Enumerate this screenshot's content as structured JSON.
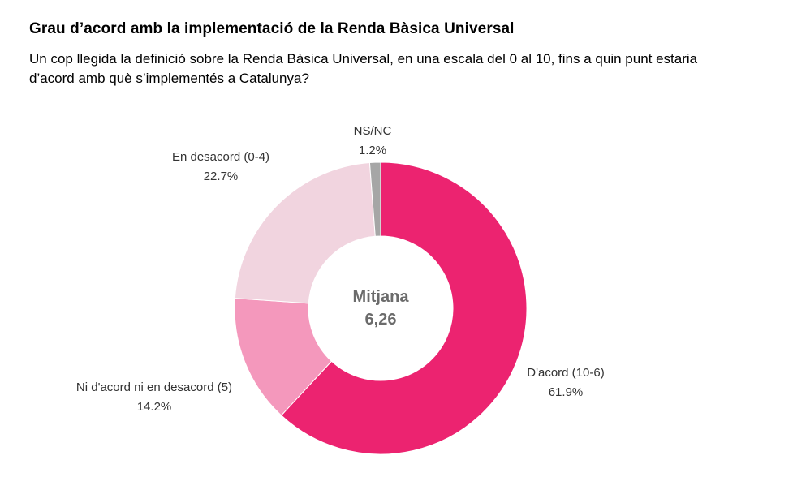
{
  "header": {
    "title": "Grau d’acord amb la implementació de la Renda Bàsica Universal",
    "subtitle": "Un cop llegida la definició sobre la Renda Bàsica Universal, en una escala del 0 al 10, fins a quin punt estaria d’acord amb què s’implementés a Catalunya?"
  },
  "chart_data": {
    "type": "pie",
    "hole": true,
    "center_label": {
      "line1": "Mitjana",
      "line2": "6,26"
    },
    "slices": [
      {
        "label": "D'acord (10-6)",
        "value": 61.9,
        "value_label": "61.9%",
        "color": "#ec2370"
      },
      {
        "label": "Ni d'acord ni en desacord (5)",
        "value": 14.2,
        "value_label": "14.2%",
        "color": "#f498bc"
      },
      {
        "label": "En desacord (0-4)",
        "value": 22.7,
        "value_label": "22.7%",
        "color": "#f1d4df"
      },
      {
        "label": "NS/NC",
        "value": 1.2,
        "value_label": "1.2%",
        "color": "#a6a6a6"
      }
    ]
  }
}
